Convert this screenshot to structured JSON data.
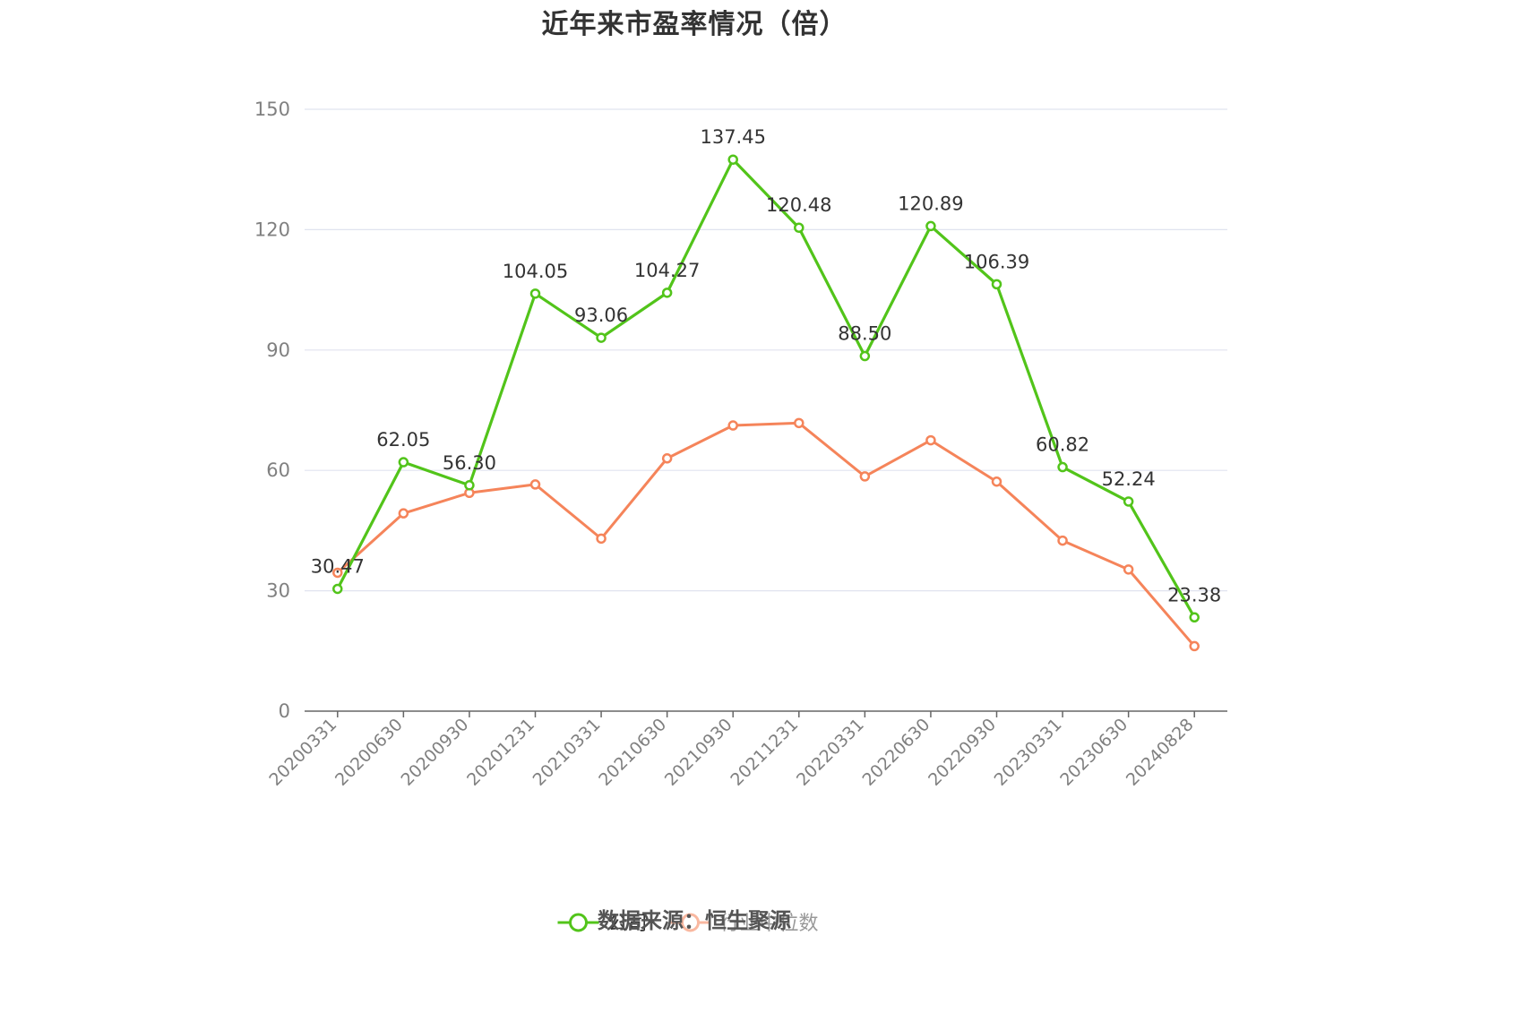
{
  "title": "近年来市盈率情况（倍）",
  "source_text": "数据来源：恒生聚源",
  "colors": {
    "company": "#52c41a",
    "industry": "#f5845a",
    "industry_legend": "#f9b8a0",
    "grid": "#e0e3ef",
    "axis": "#666666"
  },
  "chart_data": {
    "type": "line",
    "title": "近年来市盈率情况（倍）",
    "categories": [
      "20200331",
      "20200630",
      "20200930",
      "20201231",
      "20210331",
      "20210630",
      "20210930",
      "20211231",
      "20220331",
      "20220630",
      "20220930",
      "20230331",
      "20230630",
      "20240828"
    ],
    "series": [
      {
        "name": "公司",
        "values": [
          30.47,
          62.05,
          56.3,
          104.05,
          93.06,
          104.27,
          137.45,
          120.48,
          88.5,
          120.89,
          106.39,
          60.82,
          52.24,
          23.38
        ],
        "labels": [
          "30.47",
          "62.05",
          "56.30",
          "104.05",
          "93.06",
          "104.27",
          "137.45",
          "120.48",
          "88.50",
          "120.89",
          "106.39",
          "60.82",
          "52.24",
          "23.38"
        ]
      },
      {
        "name": "行业中位数",
        "values": [
          34.5,
          49.3,
          54.4,
          56.5,
          43.0,
          63.0,
          71.2,
          71.8,
          58.5,
          67.5,
          57.2,
          42.5,
          35.3,
          16.2
        ]
      }
    ],
    "yticks": [
      "0",
      "30",
      "60",
      "90",
      "120",
      "150"
    ],
    "ylim": [
      0,
      150
    ],
    "grid": true,
    "legend_position": "bottom-center"
  }
}
